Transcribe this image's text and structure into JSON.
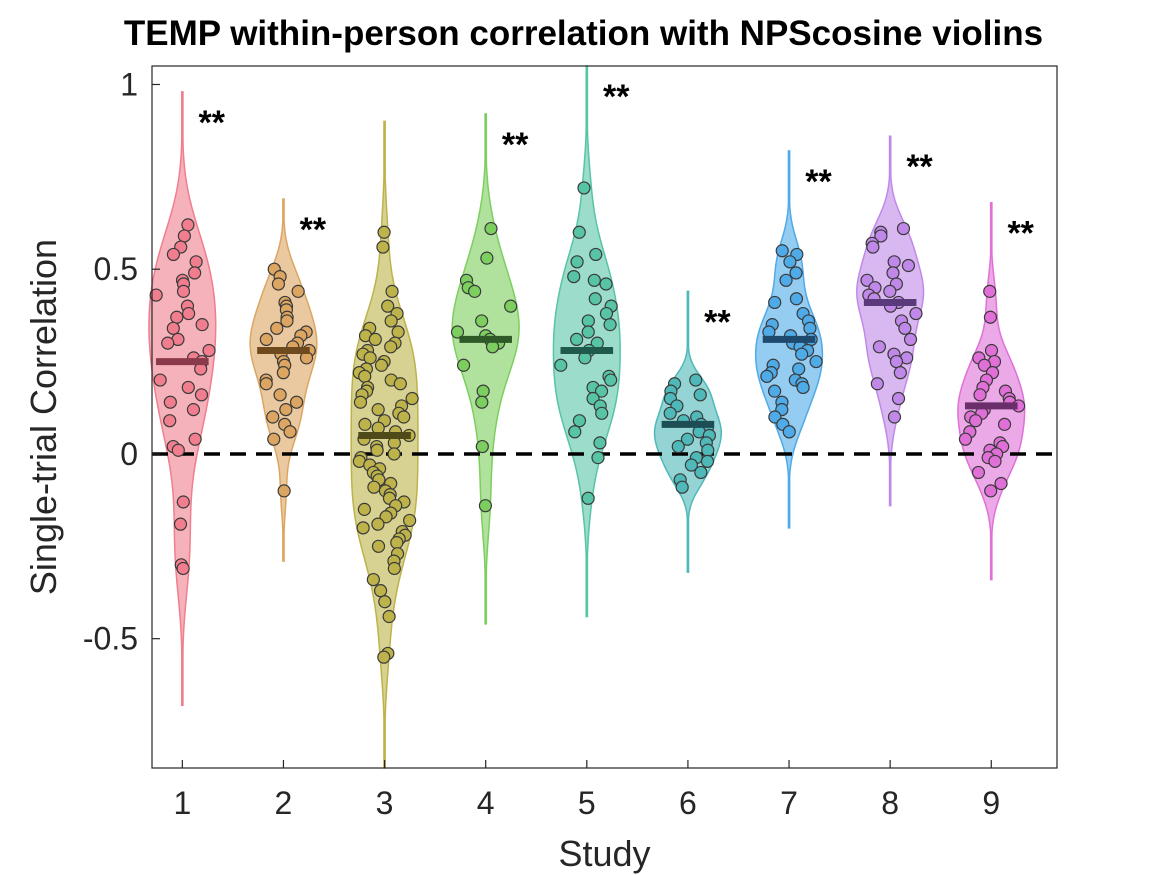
{
  "chart_data": {
    "type": "violin",
    "title": "TEMP within-person correlation with NPScosine violins",
    "xlabel": "Study",
    "ylabel": "Single-trial Correlation",
    "ylim": [
      -0.85,
      1.05
    ],
    "yticks": [
      -0.5,
      0,
      0.5,
      1
    ],
    "ytick_labels": [
      "-0.5",
      "0",
      "0.5",
      "1"
    ],
    "categories": [
      "1",
      "2",
      "3",
      "4",
      "5",
      "6",
      "7",
      "8",
      "9"
    ],
    "reference_line": 0,
    "grid": false,
    "studies": [
      {
        "study": "1",
        "color": "#f07e8e",
        "median_color": "#8a3a4a",
        "median": 0.25,
        "significance": "**",
        "range": [
          -0.68,
          0.98
        ],
        "points": [
          0.62,
          0.59,
          0.56,
          0.54,
          0.52,
          0.49,
          0.47,
          0.46,
          0.44,
          0.43,
          0.4,
          0.38,
          0.37,
          0.35,
          0.34,
          0.31,
          0.3,
          0.28,
          0.26,
          0.25,
          0.23,
          0.2,
          0.18,
          0.16,
          0.14,
          0.12,
          0.09,
          0.04,
          0.02,
          0.01,
          -0.13,
          -0.19,
          -0.3,
          -0.31
        ]
      },
      {
        "study": "2",
        "color": "#dca561",
        "median_color": "#6e4a1e",
        "median": 0.28,
        "significance": "**",
        "range": [
          -0.29,
          0.69
        ],
        "points": [
          0.5,
          0.48,
          0.46,
          0.44,
          0.41,
          0.4,
          0.39,
          0.37,
          0.36,
          0.34,
          0.33,
          0.32,
          0.31,
          0.3,
          0.29,
          0.28,
          0.27,
          0.26,
          0.25,
          0.24,
          0.22,
          0.2,
          0.19,
          0.16,
          0.14,
          0.12,
          0.1,
          0.08,
          0.06,
          0.04,
          -0.1
        ]
      },
      {
        "study": "3",
        "color": "#bdb34a",
        "median_color": "#4e4a1a",
        "median": 0.05,
        "significance": "",
        "range": [
          -0.85,
          0.9
        ],
        "points": [
          0.6,
          0.56,
          0.44,
          0.4,
          0.38,
          0.36,
          0.34,
          0.33,
          0.32,
          0.31,
          0.3,
          0.29,
          0.28,
          0.27,
          0.26,
          0.25,
          0.24,
          0.23,
          0.22,
          0.21,
          0.2,
          0.19,
          0.18,
          0.17,
          0.16,
          0.15,
          0.14,
          0.13,
          0.12,
          0.11,
          0.1,
          0.09,
          0.08,
          0.07,
          0.06,
          0.05,
          0.04,
          0.03,
          0.02,
          0.01,
          0.0,
          -0.01,
          -0.02,
          -0.03,
          -0.04,
          -0.05,
          -0.06,
          -0.07,
          -0.08,
          -0.09,
          -0.1,
          -0.11,
          -0.12,
          -0.13,
          -0.14,
          -0.15,
          -0.16,
          -0.17,
          -0.18,
          -0.19,
          -0.2,
          -0.21,
          -0.22,
          -0.23,
          -0.24,
          -0.25,
          -0.27,
          -0.29,
          -0.31,
          -0.34,
          -0.37,
          -0.4,
          -0.44,
          -0.54,
          -0.55
        ]
      },
      {
        "study": "4",
        "color": "#7ccf5e",
        "median_color": "#2e5a28",
        "median": 0.31,
        "significance": "**",
        "range": [
          -0.46,
          0.92
        ],
        "points": [
          0.61,
          0.53,
          0.47,
          0.45,
          0.44,
          0.4,
          0.36,
          0.33,
          0.32,
          0.31,
          0.3,
          0.29,
          0.24,
          0.17,
          0.14,
          0.02,
          -0.14
        ]
      },
      {
        "study": "5",
        "color": "#58c4a6",
        "median_color": "#1f5a4c",
        "median": 0.28,
        "significance": "**",
        "range": [
          -0.44,
          1.05
        ],
        "points": [
          0.72,
          0.6,
          0.54,
          0.52,
          0.48,
          0.47,
          0.46,
          0.42,
          0.4,
          0.38,
          0.36,
          0.35,
          0.33,
          0.31,
          0.3,
          0.28,
          0.26,
          0.24,
          0.21,
          0.2,
          0.18,
          0.17,
          0.15,
          0.13,
          0.11,
          0.09,
          0.06,
          0.03,
          -0.01,
          -0.12
        ]
      },
      {
        "study": "6",
        "color": "#4fb8b8",
        "median_color": "#1e4e55",
        "median": 0.08,
        "significance": "**",
        "range": [
          -0.32,
          0.44
        ],
        "points": [
          0.2,
          0.19,
          0.17,
          0.16,
          0.15,
          0.13,
          0.11,
          0.1,
          0.09,
          0.08,
          0.07,
          0.06,
          0.05,
          0.04,
          0.03,
          0.02,
          0.01,
          -0.01,
          -0.02,
          -0.03,
          -0.05,
          -0.07,
          -0.09
        ]
      },
      {
        "study": "7",
        "color": "#4faae8",
        "median_color": "#1e4a6e",
        "median": 0.31,
        "significance": "**",
        "range": [
          -0.2,
          0.82
        ],
        "points": [
          0.55,
          0.54,
          0.52,
          0.49,
          0.47,
          0.42,
          0.41,
          0.38,
          0.36,
          0.35,
          0.34,
          0.33,
          0.32,
          0.31,
          0.3,
          0.29,
          0.28,
          0.27,
          0.25,
          0.24,
          0.23,
          0.22,
          0.21,
          0.2,
          0.19,
          0.18,
          0.17,
          0.14,
          0.12,
          0.1,
          0.08,
          0.06
        ]
      },
      {
        "study": "8",
        "color": "#c088e8",
        "median_color": "#5a3a7a",
        "median": 0.41,
        "significance": "**",
        "range": [
          -0.14,
          0.86
        ],
        "points": [
          0.61,
          0.6,
          0.59,
          0.57,
          0.56,
          0.52,
          0.51,
          0.49,
          0.47,
          0.46,
          0.45,
          0.44,
          0.43,
          0.42,
          0.41,
          0.4,
          0.38,
          0.36,
          0.34,
          0.31,
          0.29,
          0.27,
          0.26,
          0.25,
          0.22,
          0.19,
          0.15,
          0.1
        ]
      },
      {
        "study": "9",
        "color": "#e070d8",
        "median_color": "#6a2e6a",
        "median": 0.13,
        "significance": "**",
        "range": [
          -0.34,
          0.68
        ],
        "points": [
          0.44,
          0.37,
          0.28,
          0.26,
          0.25,
          0.24,
          0.22,
          0.2,
          0.18,
          0.17,
          0.16,
          0.15,
          0.14,
          0.13,
          0.12,
          0.11,
          0.1,
          0.09,
          0.08,
          0.06,
          0.04,
          0.03,
          0.02,
          0.01,
          0.0,
          -0.01,
          -0.02,
          -0.05,
          -0.08,
          -0.1
        ]
      }
    ]
  }
}
